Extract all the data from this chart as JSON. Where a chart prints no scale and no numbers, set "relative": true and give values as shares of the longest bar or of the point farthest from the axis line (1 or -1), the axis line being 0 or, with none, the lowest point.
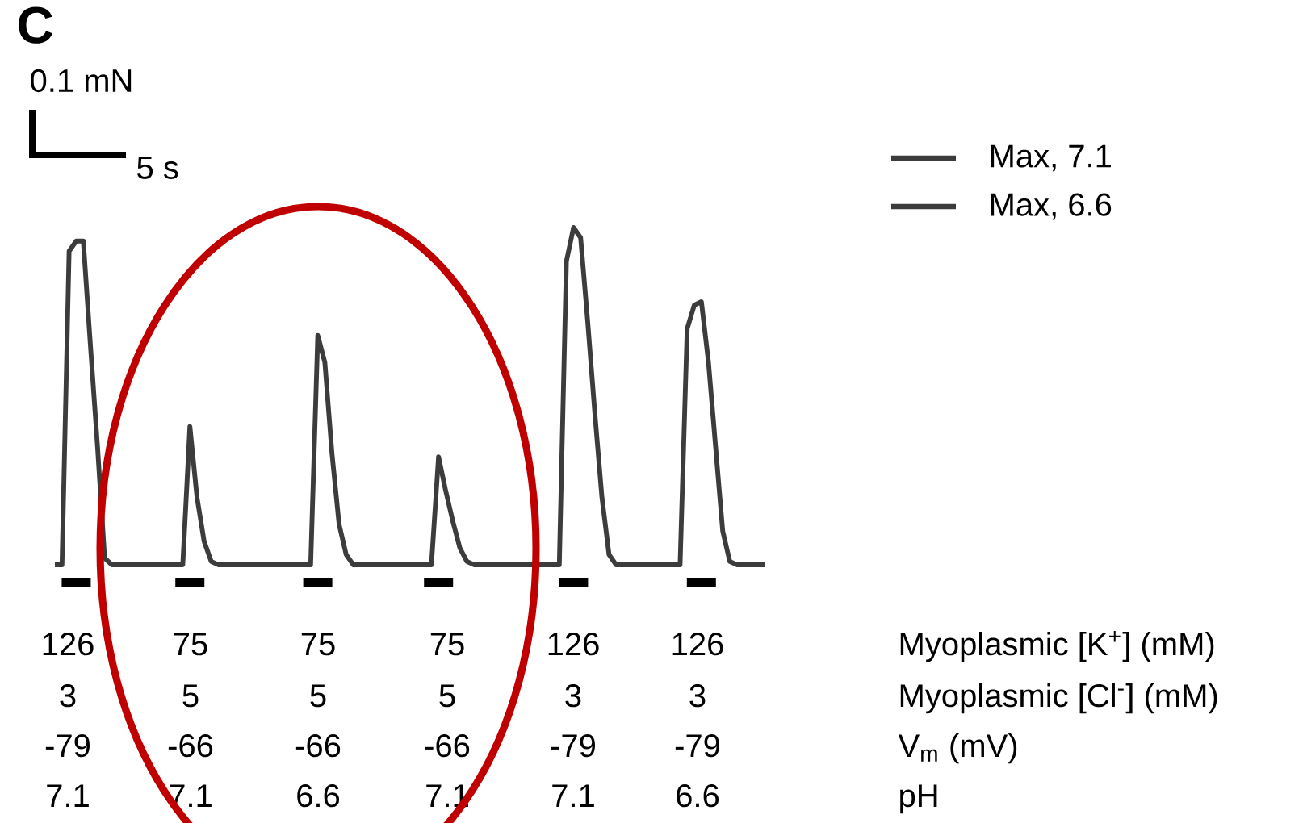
{
  "chart_data": {
    "type": "line",
    "title": "C",
    "relative": true,
    "categories": [
      null,
      null,
      null,
      null,
      null,
      null,
      null,
      null,
      null,
      null,
      null,
      null,
      null,
      null,
      null,
      null,
      null,
      null,
      null,
      null,
      null,
      null,
      null,
      null,
      null,
      null,
      null,
      null,
      null,
      null,
      null,
      null,
      null,
      null,
      null,
      null,
      null,
      null,
      null,
      null,
      null,
      null,
      null,
      null,
      null,
      null,
      null,
      null,
      null,
      null,
      null,
      null,
      null,
      null,
      null,
      null,
      null,
      null,
      null,
      null,
      null,
      null,
      null,
      null,
      null,
      null,
      null,
      null,
      null,
      null,
      null,
      null,
      null,
      null,
      null,
      null,
      null,
      null,
      null,
      null,
      null,
      null,
      null,
      null,
      null,
      null,
      null,
      null,
      null,
      null,
      null,
      null,
      null,
      null,
      null,
      null,
      null,
      null,
      null,
      null,
      null
    ],
    "series": [
      {
        "color": "#3c3c3c",
        "values": [
          0,
          0,
          0.93,
          0.96,
          0.96,
          0.65,
          0.35,
          0.02,
          0,
          0,
          0,
          0,
          0,
          0,
          0,
          0,
          0,
          0,
          0,
          0.41,
          0.2,
          0.07,
          0.01,
          0,
          0,
          0,
          0,
          0,
          0,
          0,
          0,
          0,
          0,
          0,
          0,
          0,
          0,
          0.68,
          0.6,
          0.33,
          0.12,
          0.03,
          0,
          0,
          0,
          0,
          0,
          0,
          0,
          0,
          0,
          0,
          0,
          0,
          0.32,
          0.22,
          0.13,
          0.05,
          0.01,
          0,
          0,
          0,
          0,
          0,
          0,
          0,
          0,
          0,
          0,
          0,
          0,
          0,
          0.9,
          1,
          0.97,
          0.72,
          0.45,
          0.2,
          0.03,
          0,
          0,
          0,
          0,
          0,
          0,
          0,
          0,
          0,
          0,
          0.7,
          0.77,
          0.78,
          0.6,
          0.35,
          0.1,
          0.01,
          0,
          0,
          0,
          0,
          0
        ]
      }
    ],
    "annotations": [
      "0.1 mN",
      "5 s",
      "Max, 7.1",
      "Max, 6.6",
      "126",
      "75",
      "75",
      "75",
      "126",
      "126",
      "Myoplasmic [K$^{+}$] (mM)",
      "3",
      "5",
      "5",
      "5",
      "3",
      "3",
      "Myoplasmic [Cl$^{-}$] (mM)",
      "-79",
      "-66",
      "-66",
      "-66",
      "-79",
      "-79",
      "V$_{m}$ (mV)",
      "7.1",
      "7.1",
      "6.6",
      "7.1",
      "7.1",
      "6.6",
      "pH"
    ]
  }
}
